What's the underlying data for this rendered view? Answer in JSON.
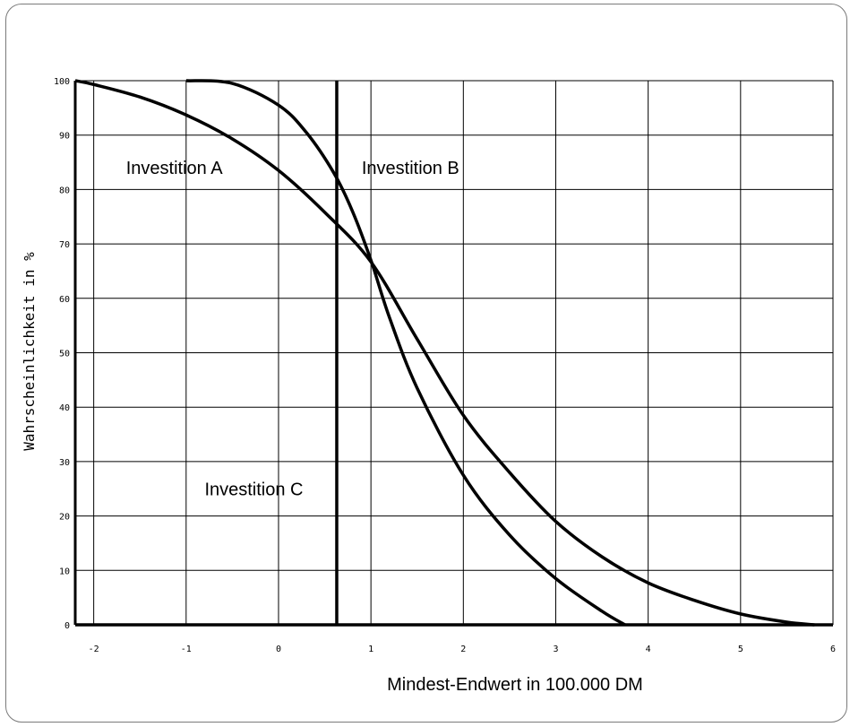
{
  "chart_data": {
    "type": "line",
    "title": "",
    "xlabel": "Mindest-Endwert in 100.000 DM",
    "ylabel": "Wahrscheinlichkeit in %",
    "xlim": [
      -2.2,
      6.0
    ],
    "ylim": [
      0,
      100
    ],
    "xticks": [
      -2,
      -1,
      0,
      1,
      2,
      3,
      4,
      5,
      6
    ],
    "yticks": [
      0,
      10,
      20,
      30,
      40,
      50,
      60,
      70,
      80,
      90,
      100
    ],
    "grid": true,
    "series": [
      {
        "name": "Investition A",
        "x": [
          -2.2,
          -2.0,
          -1.5,
          -1.0,
          -0.5,
          0.0,
          0.5,
          1.0,
          1.5,
          2.0,
          2.5,
          3.0,
          3.5,
          4.0,
          4.5,
          5.0,
          5.5,
          5.8
        ],
        "y": [
          100,
          99.3,
          97,
          93.7,
          89.3,
          83.5,
          75.8,
          66.7,
          52.5,
          38.5,
          28,
          19,
          12.5,
          7.7,
          4.5,
          2,
          0.5,
          0
        ]
      },
      {
        "name": "Investition B",
        "x": [
          -1.0,
          -0.5,
          0.0,
          0.3,
          0.6,
          0.8,
          1.0,
          1.2,
          1.5,
          2.0,
          2.5,
          3.0,
          3.5,
          3.75
        ],
        "y": [
          100,
          99.5,
          95.5,
          90.5,
          83,
          76,
          67,
          56.5,
          43.5,
          27.5,
          16.5,
          8.5,
          2.5,
          0
        ]
      },
      {
        "name": "Investition C",
        "x": [
          0.63,
          0.63
        ],
        "y": [
          0,
          100
        ]
      }
    ],
    "annotations": [
      {
        "text": "Investition A",
        "x": -1.65,
        "y": 84
      },
      {
        "text": "Investition B",
        "x": 0.9,
        "y": 84
      },
      {
        "text": "Investition C",
        "x": -0.8,
        "y": 25
      }
    ]
  }
}
